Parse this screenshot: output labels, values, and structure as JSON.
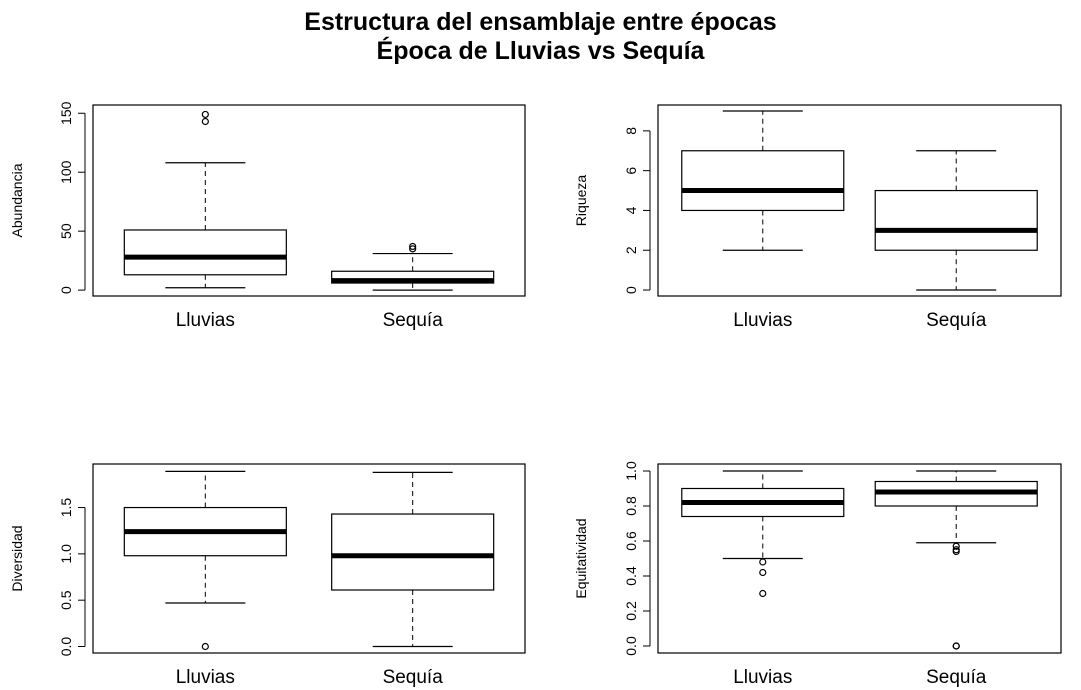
{
  "title": {
    "line1": "Estructura del ensamblaje entre épocas",
    "line2": "Época de Lluvias vs Sequía"
  },
  "chart_data": [
    {
      "type": "box",
      "ylabel": "Abundancia",
      "categories": [
        "Lluvias",
        "Sequía"
      ],
      "ylim": [
        -5,
        157
      ],
      "yticks": [
        0,
        50,
        100,
        150
      ],
      "ytick_labels": [
        "0",
        "50",
        "100",
        "150"
      ],
      "boxes": [
        {
          "category": "Lluvias",
          "whisker_low": 2,
          "q1": 13,
          "median": 28,
          "q3": 51,
          "whisker_high": 108,
          "outliers": [
            143,
            149
          ]
        },
        {
          "category": "Sequía",
          "whisker_low": 0,
          "q1": 6,
          "median": 8,
          "q3": 16,
          "whisker_high": 31,
          "outliers": [
            35,
            37
          ]
        }
      ]
    },
    {
      "type": "box",
      "ylabel": "Riqueza",
      "categories": [
        "Lluvias",
        "Sequía"
      ],
      "ylim": [
        -0.3,
        9.3
      ],
      "yticks": [
        0,
        2,
        4,
        6,
        8
      ],
      "ytick_labels": [
        "0",
        "2",
        "4",
        "6",
        "8"
      ],
      "boxes": [
        {
          "category": "Lluvias",
          "whisker_low": 2,
          "q1": 4,
          "median": 5,
          "q3": 7,
          "whisker_high": 9,
          "outliers": []
        },
        {
          "category": "Sequía",
          "whisker_low": 0,
          "q1": 2,
          "median": 3,
          "q3": 5,
          "whisker_high": 7,
          "outliers": []
        }
      ]
    },
    {
      "type": "box",
      "ylabel": "Diversidad",
      "categories": [
        "Lluvias",
        "Sequía"
      ],
      "ylim": [
        -0.07,
        1.97
      ],
      "yticks": [
        0,
        0.5,
        1,
        1.5
      ],
      "ytick_labels": [
        "0.0",
        "0.5",
        "1.0",
        "1.5"
      ],
      "boxes": [
        {
          "category": "Lluvias",
          "whisker_low": 0.47,
          "q1": 0.98,
          "median": 1.24,
          "q3": 1.5,
          "whisker_high": 1.89,
          "outliers": [
            0
          ]
        },
        {
          "category": "Sequía",
          "whisker_low": 0,
          "q1": 0.61,
          "median": 0.98,
          "q3": 1.43,
          "whisker_high": 1.88,
          "outliers": []
        }
      ]
    },
    {
      "type": "box",
      "ylabel": "Equitatividad",
      "categories": [
        "Lluvias",
        "Sequía"
      ],
      "ylim": [
        -0.04,
        1.04
      ],
      "yticks": [
        0,
        0.2,
        0.4,
        0.6,
        0.8,
        1
      ],
      "ytick_labels": [
        "0.0",
        "0.2",
        "0.4",
        "0.6",
        "0.8",
        "1.0"
      ],
      "boxes": [
        {
          "category": "Lluvias",
          "whisker_low": 0.5,
          "q1": 0.74,
          "median": 0.82,
          "q3": 0.9,
          "whisker_high": 1.0,
          "outliers": [
            0.48,
            0.42,
            0.3
          ]
        },
        {
          "category": "Sequía",
          "whisker_low": 0.59,
          "q1": 0.8,
          "median": 0.88,
          "q3": 0.94,
          "whisker_high": 1.0,
          "outliers": [
            0.57,
            0.55,
            0.54,
            0,
            0
          ]
        }
      ]
    }
  ]
}
